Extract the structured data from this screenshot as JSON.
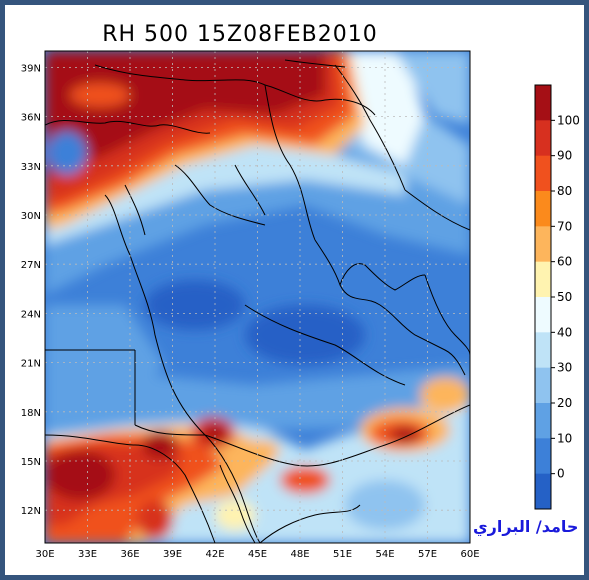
{
  "title": "RH 500  15Z08FEB2010",
  "credit": "حامد/ البراري",
  "map": {
    "lat_ticks": [
      "39N",
      "36N",
      "33N",
      "30N",
      "27N",
      "24N",
      "21N",
      "18N",
      "15N",
      "12N"
    ],
    "lon_ticks": [
      "30E",
      "33E",
      "36E",
      "39E",
      "42E",
      "45E",
      "48E",
      "51E",
      "54E",
      "57E",
      "60E"
    ],
    "lat_range": [
      10,
      40
    ],
    "lon_range": [
      30,
      60
    ],
    "grid": true,
    "field": "relative humidity at 500 hPa"
  },
  "colorbar": {
    "labels": [
      "100",
      "90",
      "80",
      "70",
      "60",
      "50",
      "40",
      "30",
      "20",
      "10",
      "0"
    ],
    "colors": [
      "#a50f15",
      "#d7301f",
      "#f0511e",
      "#fb8a1c",
      "#fdb55c",
      "#fff3b0",
      "#eefbff",
      "#bfe3f7",
      "#8fc3ef",
      "#5fa1e4",
      "#3d80d8",
      "#2561c6"
    ]
  }
}
